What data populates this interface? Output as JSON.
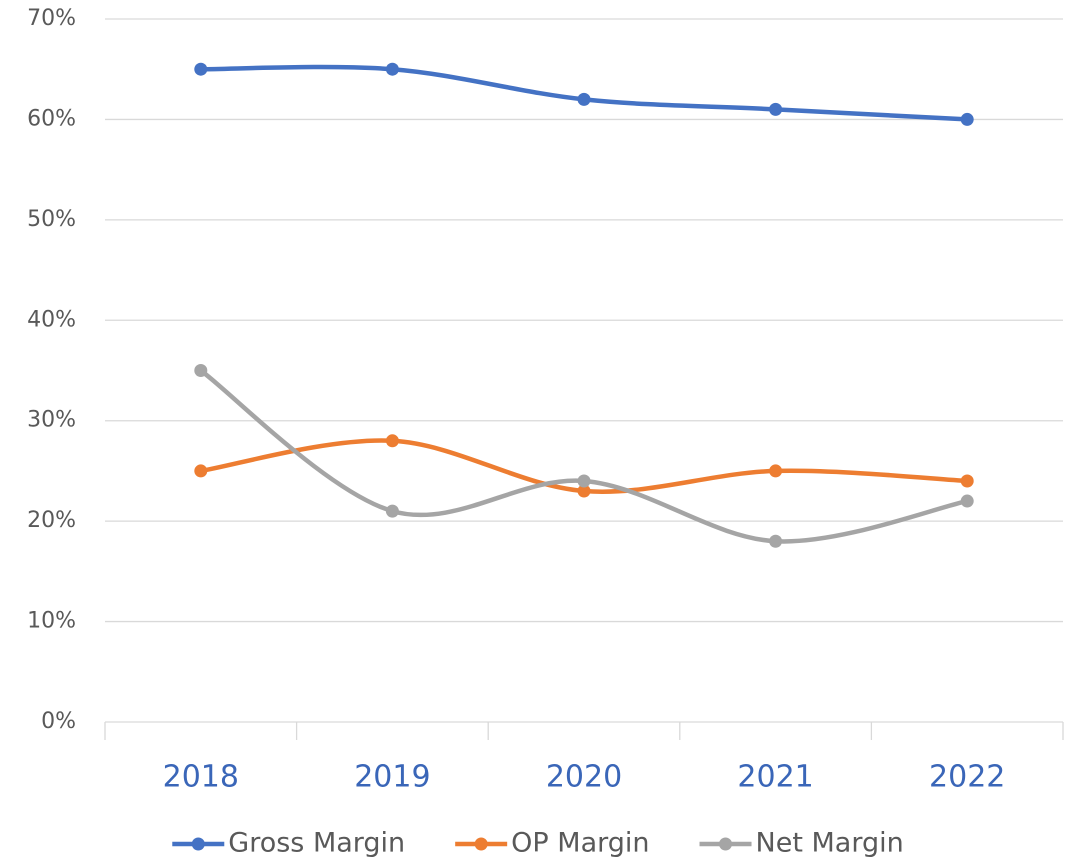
{
  "chart_data": {
    "type": "line",
    "categories": [
      "2018",
      "2019",
      "2020",
      "2021",
      "2022"
    ],
    "series": [
      {
        "name": "Gross Margin",
        "color": "#4472c4",
        "values": [
          65,
          65,
          62,
          61,
          60
        ]
      },
      {
        "name": "OP Margin",
        "color": "#ed7d31",
        "values": [
          25,
          28,
          23,
          25,
          24
        ]
      },
      {
        "name": "Net Margin",
        "color": "#a5a5a5",
        "values": [
          35,
          21,
          24,
          18,
          22
        ]
      }
    ],
    "ylim": [
      0,
      70
    ],
    "yticks": [
      {
        "value": 0,
        "label": "0%"
      },
      {
        "value": 10,
        "label": "10%"
      },
      {
        "value": 20,
        "label": "20%"
      },
      {
        "value": 30,
        "label": "30%"
      },
      {
        "value": 40,
        "label": "40%"
      },
      {
        "value": 50,
        "label": "50%"
      },
      {
        "value": 60,
        "label": "60%"
      },
      {
        "value": 70,
        "label": "70%"
      }
    ],
    "grid": true,
    "legend": "bottom",
    "smooth": true
  }
}
